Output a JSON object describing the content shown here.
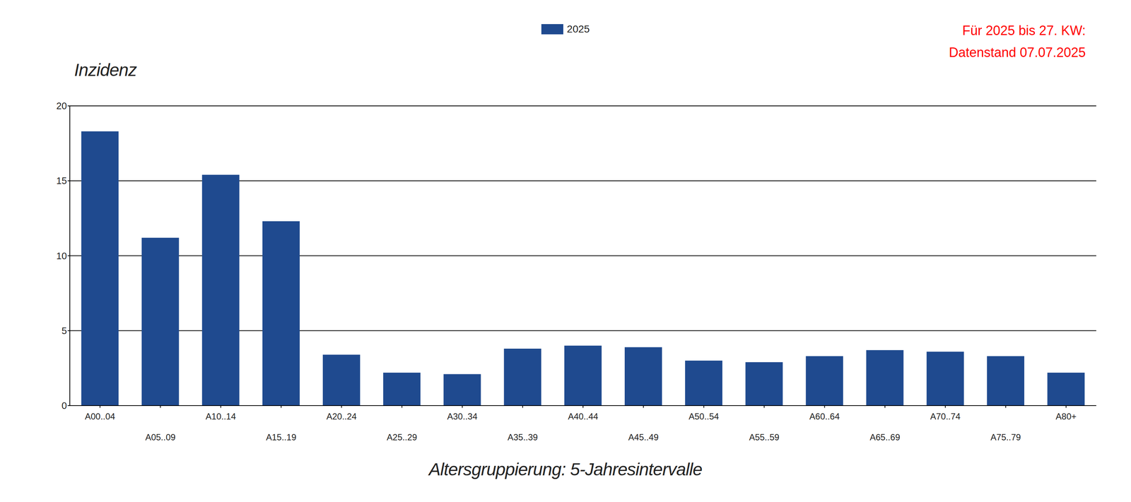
{
  "chart_data": {
    "type": "bar",
    "x_label": "Altersgruppierung: 5-Jahresintervalle",
    "y_label": "Inzidenz",
    "categories": [
      "A00..04",
      "A05..09",
      "A10..14",
      "A15..19",
      "A20..24",
      "A25..29",
      "A30..34",
      "A35..39",
      "A40..44",
      "A45..49",
      "A50..54",
      "A55..59",
      "A60..64",
      "A65..69",
      "A70..74",
      "A75..79",
      "A80+"
    ],
    "series": [
      {
        "name": "2025",
        "color": "#1f4a8f",
        "values": [
          18.3,
          11.2,
          15.4,
          12.3,
          3.4,
          2.2,
          2.1,
          3.8,
          4.0,
          3.9,
          3.0,
          2.9,
          3.3,
          3.7,
          3.6,
          3.3,
          2.2
        ]
      }
    ],
    "ylim": [
      0,
      20
    ],
    "yticks": [
      0,
      5,
      10,
      15,
      20
    ],
    "grid": true,
    "legend": "top",
    "annotations": [
      "Für 2025 bis 27. KW:",
      "Datenstand 07.07.2025"
    ]
  }
}
